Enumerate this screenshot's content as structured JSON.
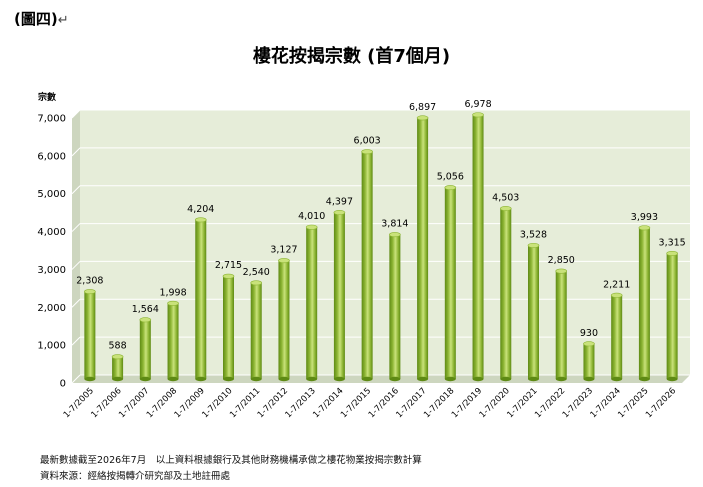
{
  "figure_label": "(圖四)",
  "figure_label_mark": "↵",
  "notes": {
    "line1": "最新數據截至2026年7月　以上資料根據銀行及其他財務機構承做之樓花物業按揭宗數計算",
    "line2": "資料來源：經絡按揭轉介研究部及土地註冊處"
  },
  "colors": {
    "bar_main": "#8DB534",
    "bar_dark": "#5E8A14",
    "bar_light": "#C9E27A",
    "plot_bg": "#E6EDD9",
    "plot_floor": "#CDD6BF"
  },
  "chart_data": {
    "type": "bar",
    "title": "樓花按揭宗數 (首7個月)",
    "ylabel": "宗數",
    "xlabel": "",
    "ylim": [
      0,
      7000
    ],
    "yticks": [
      0,
      1000,
      2000,
      3000,
      4000,
      5000,
      6000,
      7000
    ],
    "ytick_labels": [
      "0",
      "1,000",
      "2,000",
      "3,000",
      "4,000",
      "5,000",
      "6,000",
      "7,000"
    ],
    "categories": [
      "1-7/2005",
      "1-7/2006",
      "1-7/2007",
      "1-7/2008",
      "1-7/2009",
      "1-7/2010",
      "1-7/2011",
      "1-7/2012",
      "1-7/2013",
      "1-7/2014",
      "1-7/2015",
      "1-7/2016",
      "1-7/2017",
      "1-7/2018",
      "1-7/2019",
      "1-7/2020",
      "1-7/2021",
      "1-7/2022",
      "1-7/2023",
      "1-7/2024",
      "1-7/2025",
      "1-7/2026"
    ],
    "values": [
      2308,
      588,
      1564,
      1998,
      4204,
      2715,
      2540,
      3127,
      4010,
      4397,
      6003,
      3814,
      6897,
      5056,
      6978,
      4503,
      3528,
      2850,
      930,
      2211,
      3993,
      3315
    ],
    "value_labels": [
      "2,308",
      "588",
      "1,564",
      "1,998",
      "4,204",
      "2,715",
      "2,540",
      "3,127",
      "4,010",
      "4,397",
      "6,003",
      "3,814",
      "6,897",
      "5,056",
      "6,978",
      "4,503",
      "3,528",
      "2,850",
      "930",
      "2,211",
      "3,993",
      "3,315"
    ],
    "grid": true,
    "legend": "none"
  }
}
